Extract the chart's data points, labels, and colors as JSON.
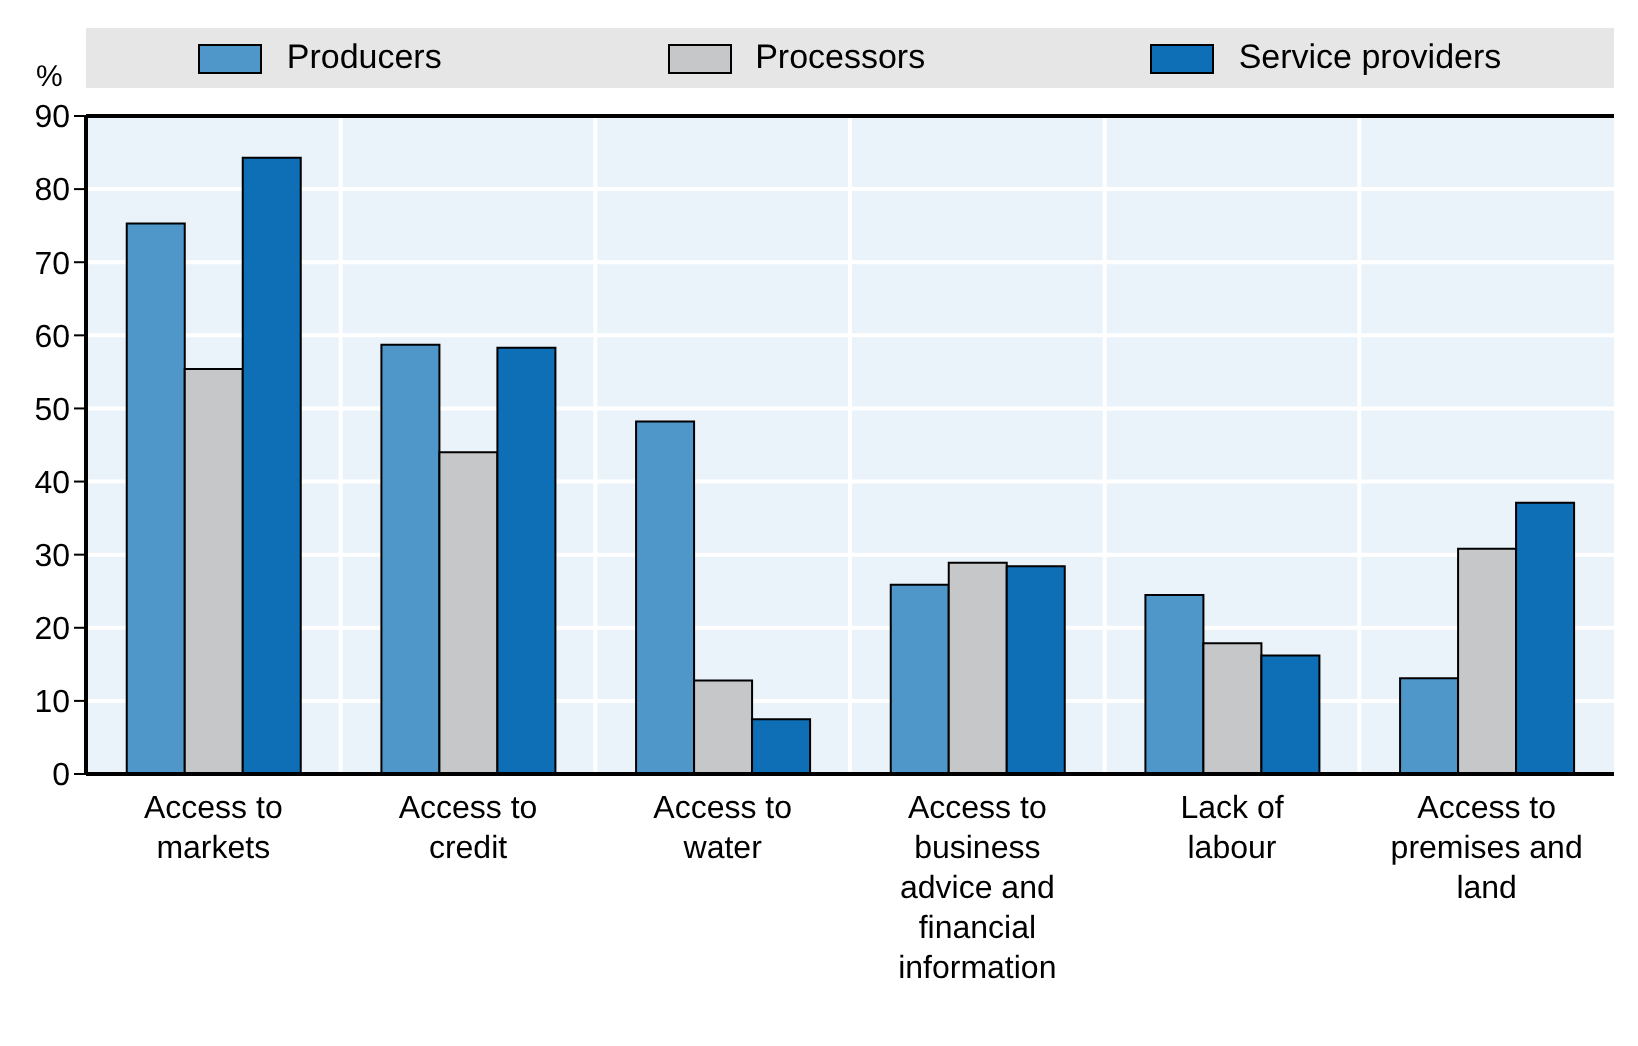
{
  "chart_data": {
    "type": "bar",
    "ylabel": "%",
    "categories": [
      "Access to markets",
      "Access to credit",
      "Access to water",
      "Access to business advice and financial information",
      "Lack of labour",
      "Access to premises and land"
    ],
    "series": [
      {
        "name": "Producers",
        "color": "#4f96c9",
        "values": [
          75.3,
          58.7,
          48.2,
          25.9,
          24.5,
          13.1
        ]
      },
      {
        "name": "Processors",
        "color": "#c6c7c9",
        "values": [
          55.4,
          44.0,
          12.8,
          28.9,
          17.9,
          30.8
        ]
      },
      {
        "name": "Service providers",
        "color": "#0f6fb6",
        "values": [
          84.3,
          58.3,
          7.5,
          28.4,
          16.2,
          37.1
        ]
      }
    ],
    "ylim": [
      0,
      90
    ],
    "yticks": [
      0,
      10,
      20,
      30,
      40,
      50,
      60,
      70,
      80,
      90
    ],
    "grid": true,
    "legend": "top"
  }
}
